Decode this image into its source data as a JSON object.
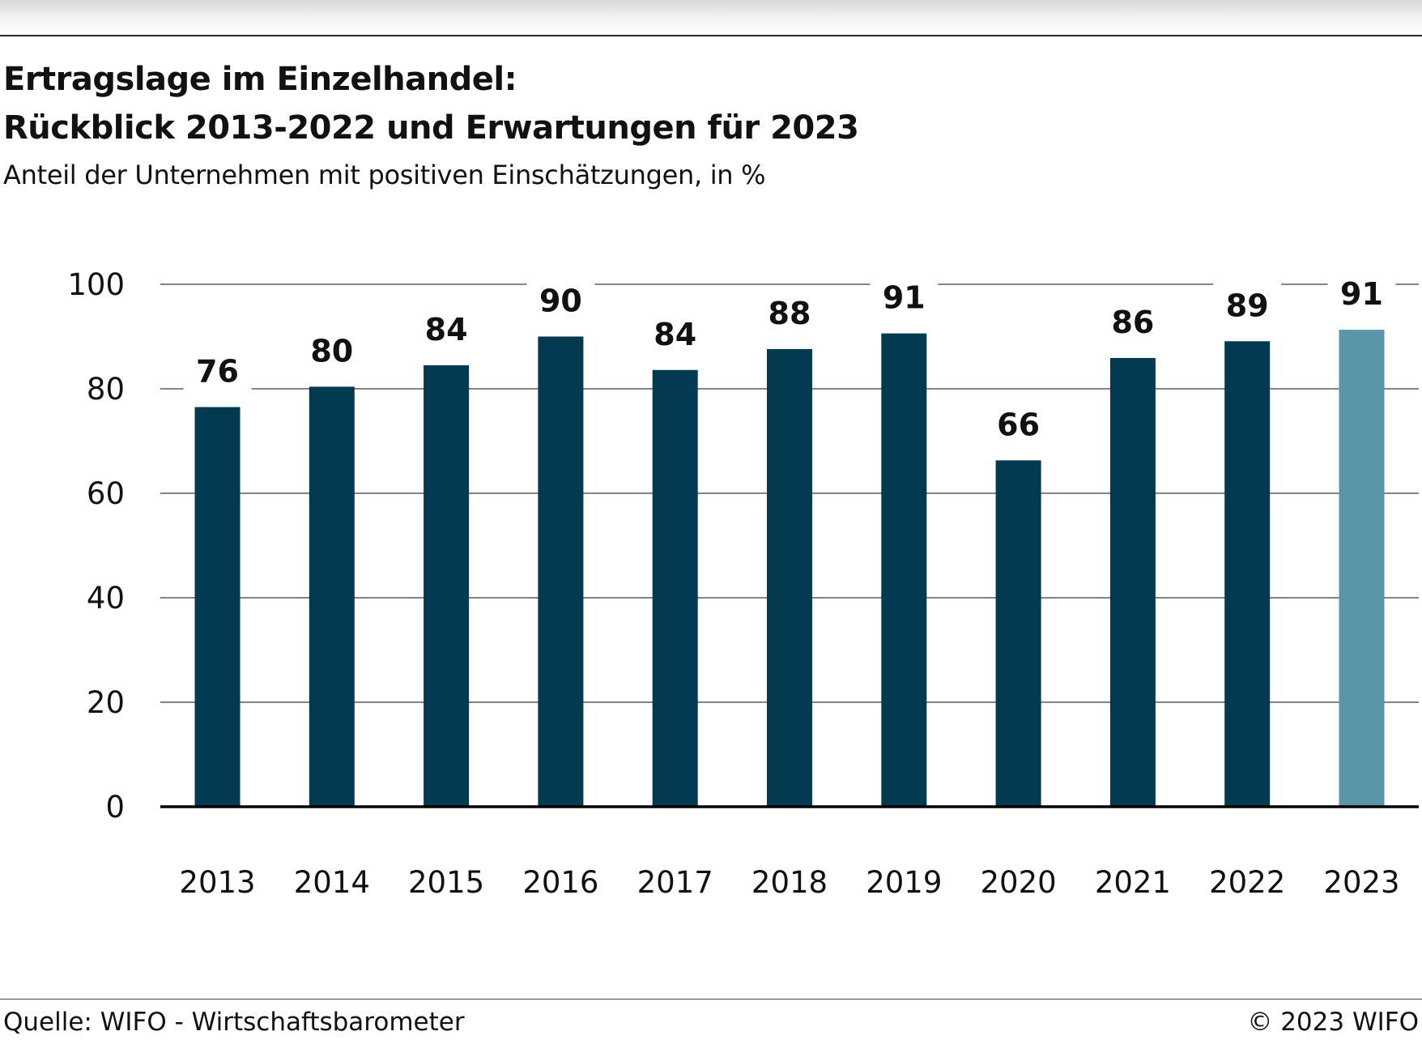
{
  "header": {
    "title_line1": "Ertragslage im Einzelhandel:",
    "title_line2": "Rückblick 2013-2022 und Erwartungen für 2023",
    "subtitle": "Anteil der Unternehmen mit positiven Einschätzungen, in %"
  },
  "footer": {
    "source": "Quelle: WIFO - Wirtschaftsbarometer",
    "copyright": "© 2023 WIFO"
  },
  "colors": {
    "bar": "#033a52",
    "bar_highlight": "#5b95aa",
    "grid": "#3a3a3a",
    "axis": "#000000"
  },
  "chart_data": {
    "type": "bar",
    "title": "Ertragslage im Einzelhandel: Rückblick 2013-2022 und Erwartungen für 2023",
    "subtitle": "Anteil der Unternehmen mit positiven Einschätzungen, in %",
    "categories": [
      "2013",
      "2014",
      "2015",
      "2016",
      "2017",
      "2018",
      "2019",
      "2020",
      "2021",
      "2022",
      "2023"
    ],
    "values": [
      76.5,
      80.4,
      84.5,
      90,
      83.6,
      87.6,
      90.6,
      66.3,
      85.9,
      89.1,
      91.3
    ],
    "data_labels": [
      "76",
      "80",
      "84",
      "90",
      "84",
      "88",
      "91",
      "66",
      "86",
      "89",
      "91"
    ],
    "highlight_category": "2023",
    "ylim": [
      0,
      100
    ],
    "yticks": [
      0,
      20,
      40,
      60,
      80,
      100
    ],
    "xlabel": "",
    "ylabel": "",
    "grid": true,
    "legend": "none"
  }
}
